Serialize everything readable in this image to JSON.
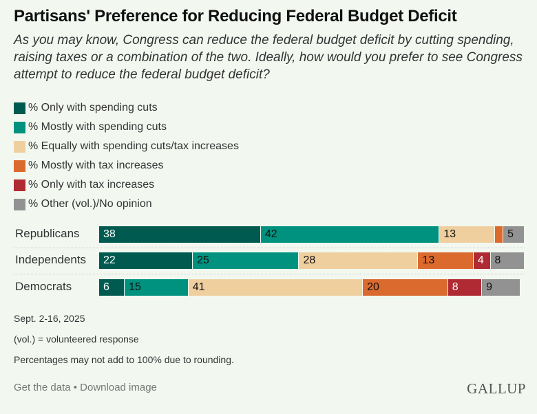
{
  "header": {
    "title": "Partisans' Preference for Reducing Federal Budget Deficit",
    "subtitle": "As you may know, Congress can reduce the federal budget deficit by cutting spending, raising taxes or a combination of the two. Ideally, how would you prefer to see Congress attempt to reduce the federal budget deficit?"
  },
  "chart_data": {
    "type": "bar",
    "orientation": "horizontal",
    "stacked": true,
    "title": "Partisans' Preference for Reducing Federal Budget Deficit",
    "categories": [
      "Republicans",
      "Independents",
      "Democrats"
    ],
    "series": [
      {
        "name": "% Only with spending cuts",
        "color": "#005a4f",
        "label_color": "#ffffff",
        "values": [
          38,
          22,
          6
        ]
      },
      {
        "name": "% Mostly with spending cuts",
        "color": "#00927e",
        "label_color": "#111111",
        "values": [
          42,
          25,
          15
        ]
      },
      {
        "name": "% Equally with spending cuts/tax increases",
        "color": "#f0cf9f",
        "label_color": "#111111",
        "values": [
          13,
          28,
          41
        ]
      },
      {
        "name": "% Mostly with tax increases",
        "color": "#db6a2f",
        "label_color": "#111111",
        "values": [
          2,
          13,
          20
        ]
      },
      {
        "name": "% Only with tax increases",
        "color": "#b02a33",
        "label_color": "#ffffff",
        "values": [
          0,
          4,
          8
        ]
      },
      {
        "name": "% Other (vol.)/No opinion",
        "color": "#929292",
        "label_color": "#111111",
        "values": [
          5,
          8,
          9
        ]
      }
    ],
    "data_labels_shown": [
      [
        true,
        true,
        true,
        false,
        false,
        true
      ],
      [
        true,
        true,
        true,
        true,
        true,
        true
      ],
      [
        true,
        true,
        true,
        true,
        true,
        true
      ]
    ],
    "xlim": [
      0,
      100
    ],
    "legend": "top-left",
    "grid": false
  },
  "notes": {
    "date": "Sept. 2-16, 2025",
    "vol": "(vol.) = volunteered response",
    "rounding": "Percentages may not add to 100% due to rounding."
  },
  "footer": {
    "get_data": "Get the data",
    "separator": "•",
    "download": "Download image",
    "logo": "GALLUP"
  }
}
